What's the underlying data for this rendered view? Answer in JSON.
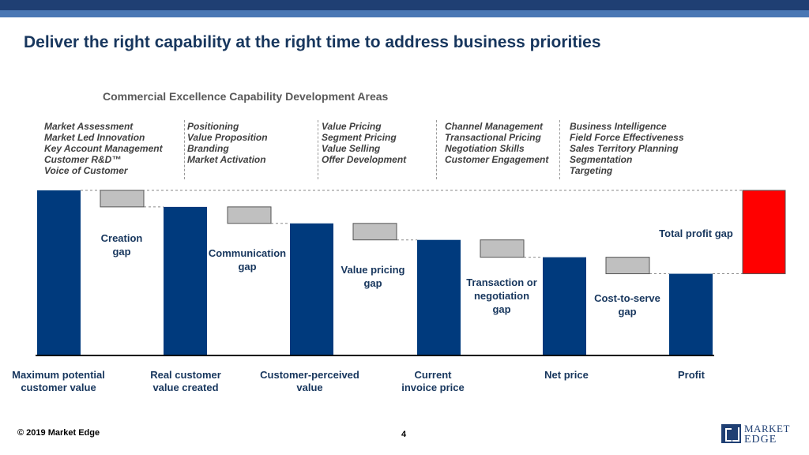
{
  "header": {
    "title": "Deliver the right capability at the right time to address business priorities",
    "subtitle": "Commercial Excellence Capability Development Areas"
  },
  "capabilities": [
    [
      "Market Assessment",
      "Market Led Innovation",
      "Key Account Management",
      "Customer R&D™",
      "Voice of Customer"
    ],
    [
      "Positioning",
      "Value Proposition",
      "Branding",
      "Market Activation"
    ],
    [
      "Value Pricing",
      "Segment  Pricing",
      "Value Selling",
      "Offer Development"
    ],
    [
      "Channel Management",
      "Transactional Pricing",
      "Negotiation Skills",
      "Customer Engagement"
    ],
    [
      "Business Intelligence",
      "Field Force Effectiveness",
      "Sales Territory Planning",
      "Segmentation",
      "Targeting"
    ]
  ],
  "chart_data": {
    "type": "bar",
    "subtype": "waterfall",
    "ylim": [
      0,
      100
    ],
    "grid": false,
    "legend": "none",
    "categories": [
      "Maximum potential customer value",
      "Real customer value created",
      "Customer-perceived value",
      "Current invoice price",
      "Net price",
      "Profit"
    ],
    "category_labels": [
      [
        "Maximum potential",
        "customer value"
      ],
      [
        "Real customer",
        "value created"
      ],
      [
        "Customer-perceived",
        "value"
      ],
      [
        "Current",
        "invoice price"
      ],
      [
        "Net price"
      ],
      [
        "Profit"
      ]
    ],
    "values": [
      100,
      90,
      80,
      70,
      59.5,
      49.5
    ],
    "gaps": [
      {
        "label_lines": [
          "Creation",
          "gap"
        ],
        "from": 100,
        "to": 90
      },
      {
        "label_lines": [
          "Communication",
          "gap"
        ],
        "from": 90,
        "to": 80
      },
      {
        "label_lines": [
          "Value pricing",
          "gap"
        ],
        "from": 80,
        "to": 70
      },
      {
        "label_lines": [
          "Transaction or",
          "negotiation",
          "gap"
        ],
        "from": 70,
        "to": 59.5
      },
      {
        "label_lines": [
          "Cost-to-serve",
          "gap"
        ],
        "from": 59.5,
        "to": 49.5
      }
    ],
    "total_gap": {
      "label": "Total profit gap",
      "from": 100,
      "to": 49.5
    },
    "colors": {
      "bar": "#003a7d",
      "gap": "#c0c0c0",
      "total_gap": "#ff0000",
      "label": "#17365d"
    }
  },
  "footer": {
    "copyright": "© 2019 Market Edge",
    "page_number": "4",
    "logo_line1": "MARKET",
    "logo_line2": "EDGE"
  }
}
